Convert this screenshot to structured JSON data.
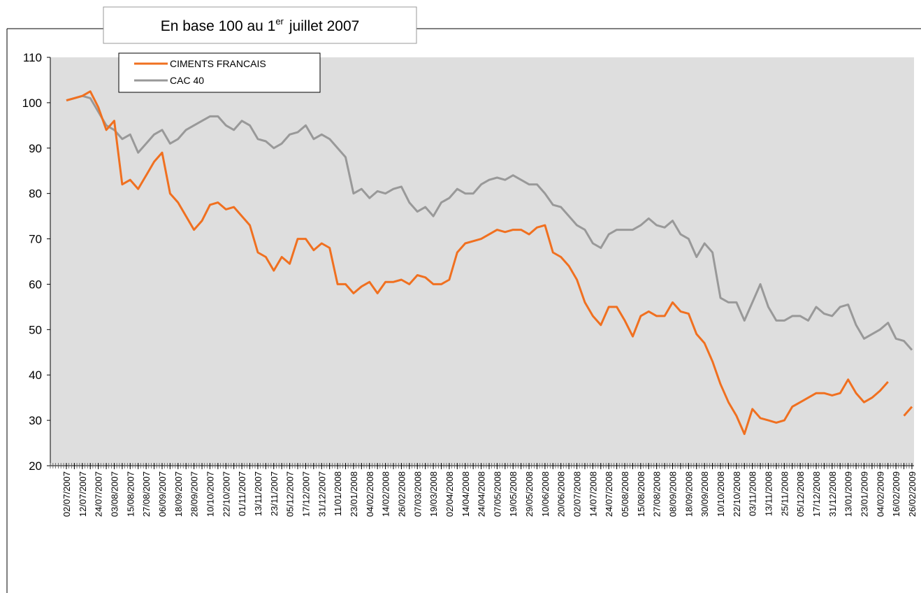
{
  "chart_data": {
    "type": "line",
    "title": {
      "text": "En base 100 au 1",
      "superscript": "er",
      "rest": "juillet 2007"
    },
    "categories": [
      "02/07/2007",
      null,
      "12/07/2007",
      null,
      "24/07/2007",
      null,
      "03/08/2007",
      null,
      "15/08/2007",
      null,
      "27/08/2007",
      null,
      "06/09/2007",
      null,
      "18/09/2007",
      null,
      "28/09/2007",
      null,
      "10/10/2007",
      null,
      "22/10/2007",
      null,
      "01/11/2007",
      null,
      "13/11/2007",
      null,
      "23/11/2007",
      null,
      "05/12/2007",
      null,
      "17/12/2007",
      null,
      "31/12/2007",
      null,
      "11/01/2008",
      null,
      "23/01/2008",
      null,
      "04/02/2008",
      null,
      "14/02/2008",
      null,
      "26/02/2008",
      null,
      "07/03/2008",
      null,
      "19/03/2008",
      null,
      "02/04/2008",
      null,
      "14/04/2008",
      null,
      "24/04/2008",
      null,
      "07/05/2008",
      null,
      "19/05/2008",
      null,
      "29/05/2008",
      null,
      "10/06/2008",
      null,
      "20/06/2008",
      null,
      "02/07/2008",
      null,
      "14/07/2008",
      null,
      "24/07/2008",
      null,
      "05/08/2008",
      null,
      "15/08/2008",
      null,
      "27/08/2008",
      null,
      "08/09/2008",
      null,
      "18/09/2008",
      null,
      "30/09/2008",
      null,
      "10/10/2008",
      null,
      "22/10/2008",
      null,
      "03/11/2008",
      null,
      "13/11/2008",
      null,
      "25/11/2008",
      null,
      "05/12/2008",
      null,
      "17/12/2008",
      null,
      "31/12/2008",
      null,
      "13/01/2009",
      null,
      "23/01/2009",
      null,
      "04/02/2009",
      null,
      "16/02/2009",
      null,
      "26/02/2009"
    ],
    "series": [
      {
        "name": "CIMENTS  FRANCAIS",
        "color": "#f07020",
        "values": [
          100.5,
          101,
          101.5,
          102.5,
          99,
          94,
          96,
          82,
          83,
          81,
          84,
          87,
          89,
          80,
          78,
          75,
          72,
          74,
          77.5,
          78,
          76.5,
          77,
          75,
          73,
          67,
          66,
          63,
          66,
          64.5,
          70,
          70,
          67.5,
          69,
          68,
          60,
          60,
          58,
          59.5,
          60.5,
          58,
          60.5,
          60.5,
          61,
          60,
          62,
          61.5,
          60,
          60,
          61,
          67,
          69,
          69.5,
          70,
          71,
          72,
          71.5,
          72,
          72,
          71,
          72.5,
          73,
          67,
          66,
          64,
          61,
          56,
          53,
          51,
          55,
          55,
          52,
          48.5,
          53,
          54,
          53,
          53,
          56,
          54,
          53.5,
          49,
          47,
          43,
          38,
          34,
          31,
          27,
          32.5,
          30.5,
          30,
          29.5,
          30,
          33,
          34,
          35,
          36,
          36,
          35.5,
          36,
          39,
          36,
          34,
          35,
          36.5,
          38.5,
          null,
          31,
          33
        ]
      },
      {
        "name": "CAC 40",
        "color": "#999999",
        "values": [
          100.5,
          101,
          101.5,
          101,
          98,
          95,
          94,
          92,
          93,
          89,
          91,
          93,
          94,
          91,
          92,
          94,
          95,
          96,
          97,
          97,
          95,
          94,
          96,
          95,
          92,
          91.5,
          90,
          91,
          93,
          93.5,
          95,
          92,
          93,
          92,
          90,
          88,
          80,
          81,
          79,
          80.5,
          80,
          81,
          81.5,
          78,
          76,
          77,
          75,
          78,
          79,
          81,
          80,
          80,
          82,
          83,
          83.5,
          83,
          84,
          83,
          82,
          82,
          80,
          77.5,
          77,
          75,
          73,
          72,
          69,
          68,
          71,
          72,
          72,
          72,
          73,
          74.5,
          73,
          72.5,
          74,
          71,
          70,
          66,
          69,
          67,
          57,
          56,
          56,
          52,
          56,
          60,
          55,
          52,
          52,
          53,
          53,
          52,
          55,
          53.5,
          53,
          55,
          55.5,
          51,
          48,
          49,
          50,
          51.5,
          48,
          47.5,
          45.5
        ]
      }
    ],
    "ylim": [
      20,
      110
    ],
    "yticks": [
      20,
      30,
      40,
      50,
      60,
      70,
      80,
      90,
      100,
      110
    ],
    "grid": false
  }
}
